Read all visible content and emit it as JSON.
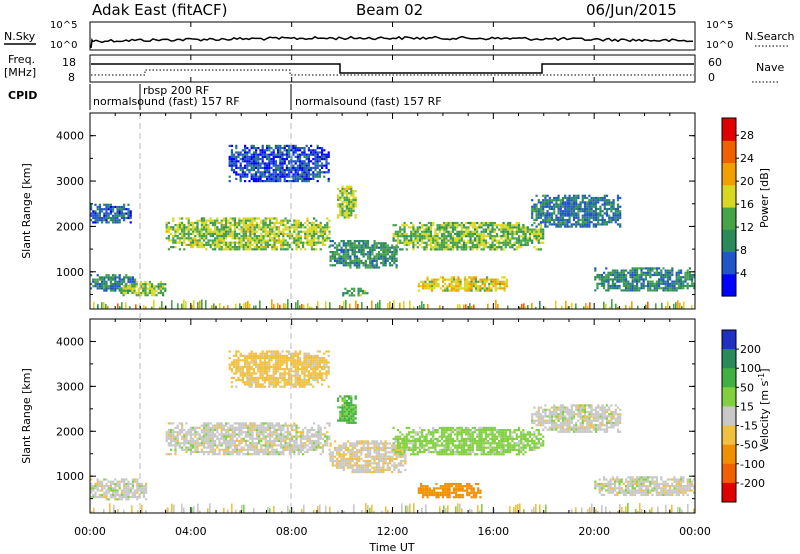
{
  "header": {
    "station": "Adak East (fitACF)",
    "beam": "Beam 02",
    "date": "06/Jun/2015"
  },
  "side_labels": {
    "nsky": "N.Sky",
    "nsearch": "N.Search",
    "freq_line1": "Freq.",
    "freq_line2": "[MHz]",
    "nave": "Nave",
    "cpid": "CPID"
  },
  "noise_panel": {
    "left_ticks": [
      "10^5",
      "10^0"
    ],
    "right_ticks": [
      "10^5",
      "10^0"
    ]
  },
  "freq_panel": {
    "left_ticks": [
      "18",
      "8"
    ],
    "right_ticks": [
      "60",
      "0"
    ]
  },
  "cpid_panel": {
    "segments": [
      {
        "label": "normalsound (fast) 157 RF",
        "start_hour": 0.0
      },
      {
        "label": "rbsp 200 RF",
        "start_hour": 2.0
      },
      {
        "label": "normalsound (fast) 157 RF",
        "start_hour": 8.0
      }
    ]
  },
  "x_axis": {
    "title": "Time UT",
    "tick_labels": [
      "00:00",
      "04:00",
      "08:00",
      "12:00",
      "16:00",
      "20:00",
      "00:00"
    ],
    "tick_hours": [
      0,
      4,
      8,
      12,
      16,
      20,
      24
    ],
    "range_hours": [
      0,
      24
    ]
  },
  "chart_data": [
    {
      "type": "heatmap",
      "title": "",
      "ylabel": "Slant Range [km]",
      "xlabel": "",
      "ylim": [
        180,
        4500
      ],
      "y_ticks": [
        1000,
        2000,
        3000,
        4000
      ],
      "colorbar": {
        "label": "Power [dB]",
        "tick_labels": [
          "4",
          "8",
          "12",
          "16",
          "20",
          "24",
          "28"
        ],
        "range": [
          0,
          30
        ],
        "colors": [
          "#0000ff",
          "#2255c8",
          "#2a8a5a",
          "#47a347",
          "#d8d820",
          "#f0a000",
          "#f06000",
          "#e00000"
        ]
      },
      "regions": [
        {
          "t": [
            0.0,
            1.8
          ],
          "r": [
            600,
            950
          ],
          "level": 9
        },
        {
          "t": [
            1.2,
            3.0
          ],
          "r": [
            500,
            800
          ],
          "level": 14
        },
        {
          "t": [
            0.0,
            1.6
          ],
          "r": [
            2100,
            2500
          ],
          "level": 7
        },
        {
          "t": [
            3.0,
            9.5
          ],
          "r": [
            1500,
            2200
          ],
          "level": 15
        },
        {
          "t": [
            9.5,
            12.2
          ],
          "r": [
            1100,
            1700
          ],
          "level": 10
        },
        {
          "t": [
            12.0,
            18.0
          ],
          "r": [
            1500,
            2100
          ],
          "level": 14
        },
        {
          "t": [
            9.8,
            10.5
          ],
          "r": [
            2200,
            2900
          ],
          "level": 15
        },
        {
          "t": [
            13.0,
            16.5
          ],
          "r": [
            600,
            900
          ],
          "level": 18
        },
        {
          "t": [
            17.5,
            21.0
          ],
          "r": [
            2000,
            2700
          ],
          "level": 8
        },
        {
          "t": [
            20.0,
            24.0
          ],
          "r": [
            600,
            1100
          ],
          "level": 9
        },
        {
          "t": [
            5.5,
            9.5
          ],
          "r": [
            3000,
            3800
          ],
          "level": 5
        },
        {
          "t": [
            10.0,
            11.0
          ],
          "r": [
            500,
            650
          ],
          "level": 12
        }
      ]
    },
    {
      "type": "heatmap",
      "title": "",
      "ylabel": "Slant Range [km]",
      "xlabel": "",
      "ylim": [
        180,
        4500
      ],
      "y_ticks": [
        1000,
        2000,
        3000,
        4000
      ],
      "colorbar": {
        "label": "Velocity [m s^-1]",
        "tick_labels": [
          "200",
          "100",
          "50",
          "15",
          "-15",
          "-50",
          "-100",
          "-200"
        ],
        "range": [
          -250,
          250
        ],
        "colors": [
          "#2030c0",
          "#2a8a5a",
          "#40b040",
          "#80d040",
          "#c8c8c8",
          "#f0c040",
          "#f09000",
          "#f06000",
          "#e00000"
        ]
      },
      "regions": [
        {
          "t": [
            0.0,
            2.2
          ],
          "r": [
            500,
            950
          ],
          "level": 0
        },
        {
          "t": [
            3.0,
            9.5
          ],
          "r": [
            1500,
            2200
          ],
          "level": 0
        },
        {
          "t": [
            9.5,
            12.5
          ],
          "r": [
            1100,
            1800
          ],
          "level": -10
        },
        {
          "t": [
            12.0,
            18.0
          ],
          "r": [
            1500,
            2100
          ],
          "level": 30
        },
        {
          "t": [
            13.0,
            15.5
          ],
          "r": [
            550,
            850
          ],
          "level": -70
        },
        {
          "t": [
            17.5,
            21.0
          ],
          "r": [
            2000,
            2600
          ],
          "level": 0
        },
        {
          "t": [
            20.0,
            24.0
          ],
          "r": [
            600,
            1000
          ],
          "level": 0
        },
        {
          "t": [
            9.8,
            10.5
          ],
          "r": [
            2200,
            2800
          ],
          "level": 60
        },
        {
          "t": [
            5.5,
            9.5
          ],
          "r": [
            3000,
            3800
          ],
          "level": -30
        }
      ]
    }
  ]
}
